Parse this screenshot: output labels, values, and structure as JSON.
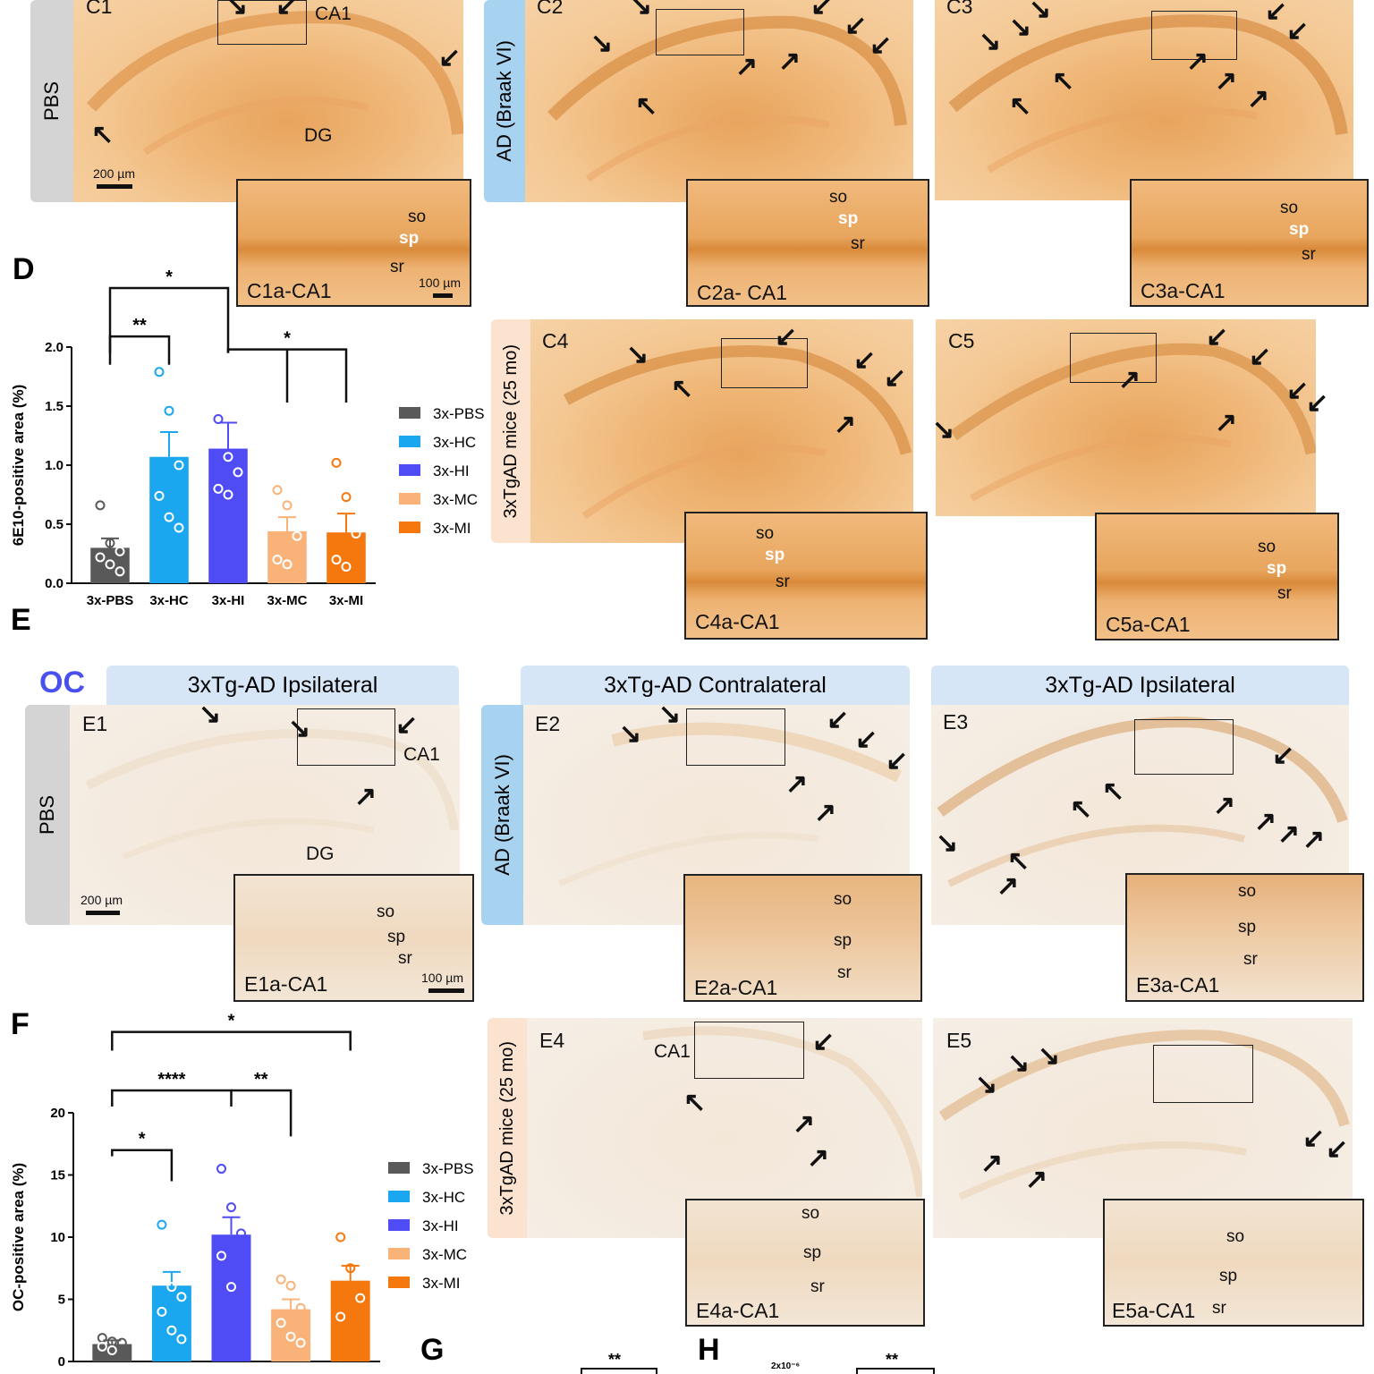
{
  "panel_letters": {
    "D": "D",
    "E": "E",
    "F": "F",
    "G": "G",
    "H": "H"
  },
  "section_oc": "OC",
  "row_labels": {
    "pbs": "PBS",
    "ad": "AD (Braak VI)",
    "mice": "3xTgAD mice (25 mo)"
  },
  "headers": {
    "e1": "3xTg-AD Ipsilateral",
    "e2": "3xTg-AD Contralateral",
    "e3": "3xTg-AD Ipsilateral"
  },
  "micrographs": {
    "c1": "C1",
    "c2": "C2",
    "c3": "C3",
    "c4": "C4",
    "c5": "C5",
    "e1": "E1",
    "e2": "E2",
    "e3": "E3",
    "e4": "E4",
    "e5": "E5"
  },
  "insets": {
    "c1a": "C1a-CA1",
    "c2a": "C2a- CA1",
    "c3a": "C3a-CA1",
    "c4a": "C4a-CA1",
    "c5a": "C5a-CA1",
    "e1a": "E1a-CA1",
    "e2a": "E2a-CA1",
    "e3a": "E3a-CA1",
    "e4a": "E4a-CA1",
    "e5a": "E5a-CA1"
  },
  "regions": {
    "ca1": "CA1",
    "dg": "DG"
  },
  "layers": {
    "so": "so",
    "sp": "sp",
    "sr": "sr"
  },
  "scale": {
    "s200": "200 µm",
    "s100": "100 µm"
  },
  "panel_g_sig": "**",
  "panel_h_sig": "**",
  "panel_h_tick": "2x10⁻⁶",
  "colors": {
    "3x-PBS": "#595959",
    "3x-HC": "#1aa7ef",
    "3x-HI": "#4f4cf5",
    "3x-MC": "#f9b379",
    "3x-MI": "#f5780f"
  },
  "chart_data": [
    {
      "type": "bar",
      "panel": "D",
      "categories": [
        "3x-PBS",
        "3x-HC",
        "3x-HI",
        "3x-MC",
        "3x-MI"
      ],
      "values": [
        0.3,
        1.07,
        1.14,
        0.44,
        0.43
      ],
      "sem": [
        0.08,
        0.21,
        0.22,
        0.12,
        0.16
      ],
      "points": [
        [
          0.66,
          0.34,
          0.27,
          0.22,
          0.16,
          0.1
        ],
        [
          1.79,
          1.46,
          1.0,
          0.74,
          0.56,
          0.47
        ],
        [
          1.39,
          1.07,
          0.94,
          0.8,
          0.75
        ],
        [
          0.79,
          0.66,
          0.4,
          0.2,
          0.16
        ],
        [
          1.02,
          0.73,
          0.42,
          0.2,
          0.14
        ]
      ],
      "ylabel": "6E10-positive area (%)",
      "ylim": [
        0,
        2.0
      ],
      "yticks": [
        "0.0",
        "0.5",
        "1.0",
        "1.5",
        "2.0"
      ],
      "legend": [
        "3x-PBS",
        "3x-HC",
        "3x-HI",
        "3x-MC",
        "3x-MI"
      ],
      "significance": [
        {
          "from": "3x-PBS",
          "to": "3x-HI",
          "label": "*"
        },
        {
          "from": "3x-PBS",
          "to": "3x-HC",
          "label": "**"
        },
        {
          "from": "3x-HI",
          "to": [
            "3x-MC",
            "3x-MI"
          ],
          "label": "*"
        }
      ]
    },
    {
      "type": "bar",
      "panel": "F",
      "categories": [
        "3x-PBS",
        "3x-HC",
        "3x-HI",
        "3x-MC",
        "3x-MI"
      ],
      "values": [
        1.4,
        6.1,
        10.2,
        4.2,
        6.5
      ],
      "sem": [
        0.3,
        1.1,
        1.4,
        0.8,
        1.2
      ],
      "points": [
        [
          1.9,
          1.6,
          1.5,
          1.2,
          0.9
        ],
        [
          11.0,
          6.0,
          5.2,
          4.0,
          2.5,
          1.8
        ],
        [
          15.5,
          12.4,
          10.3,
          8.5,
          6.0
        ],
        [
          6.6,
          6.1,
          4.3,
          3.1,
          2.0,
          1.5
        ],
        [
          10.0,
          7.5,
          5.1,
          3.6
        ]
      ],
      "ylabel": "OC-positive area (%)",
      "ylim": [
        0,
        20
      ],
      "yticks": [
        "0",
        "5",
        "10",
        "15",
        "20"
      ],
      "legend": [
        "3x-PBS",
        "3x-HC",
        "3x-HI",
        "3x-MC",
        "3x-MI"
      ],
      "significance": [
        {
          "from": "3x-PBS",
          "to": "3x-MI",
          "label": "*"
        },
        {
          "from": "3x-PBS",
          "to": "3x-HI",
          "label": "****"
        },
        {
          "from": "3x-HI",
          "to": "3x-MC",
          "label": "**"
        },
        {
          "from": "3x-PBS",
          "to": "3x-HC",
          "label": "*"
        }
      ]
    }
  ]
}
